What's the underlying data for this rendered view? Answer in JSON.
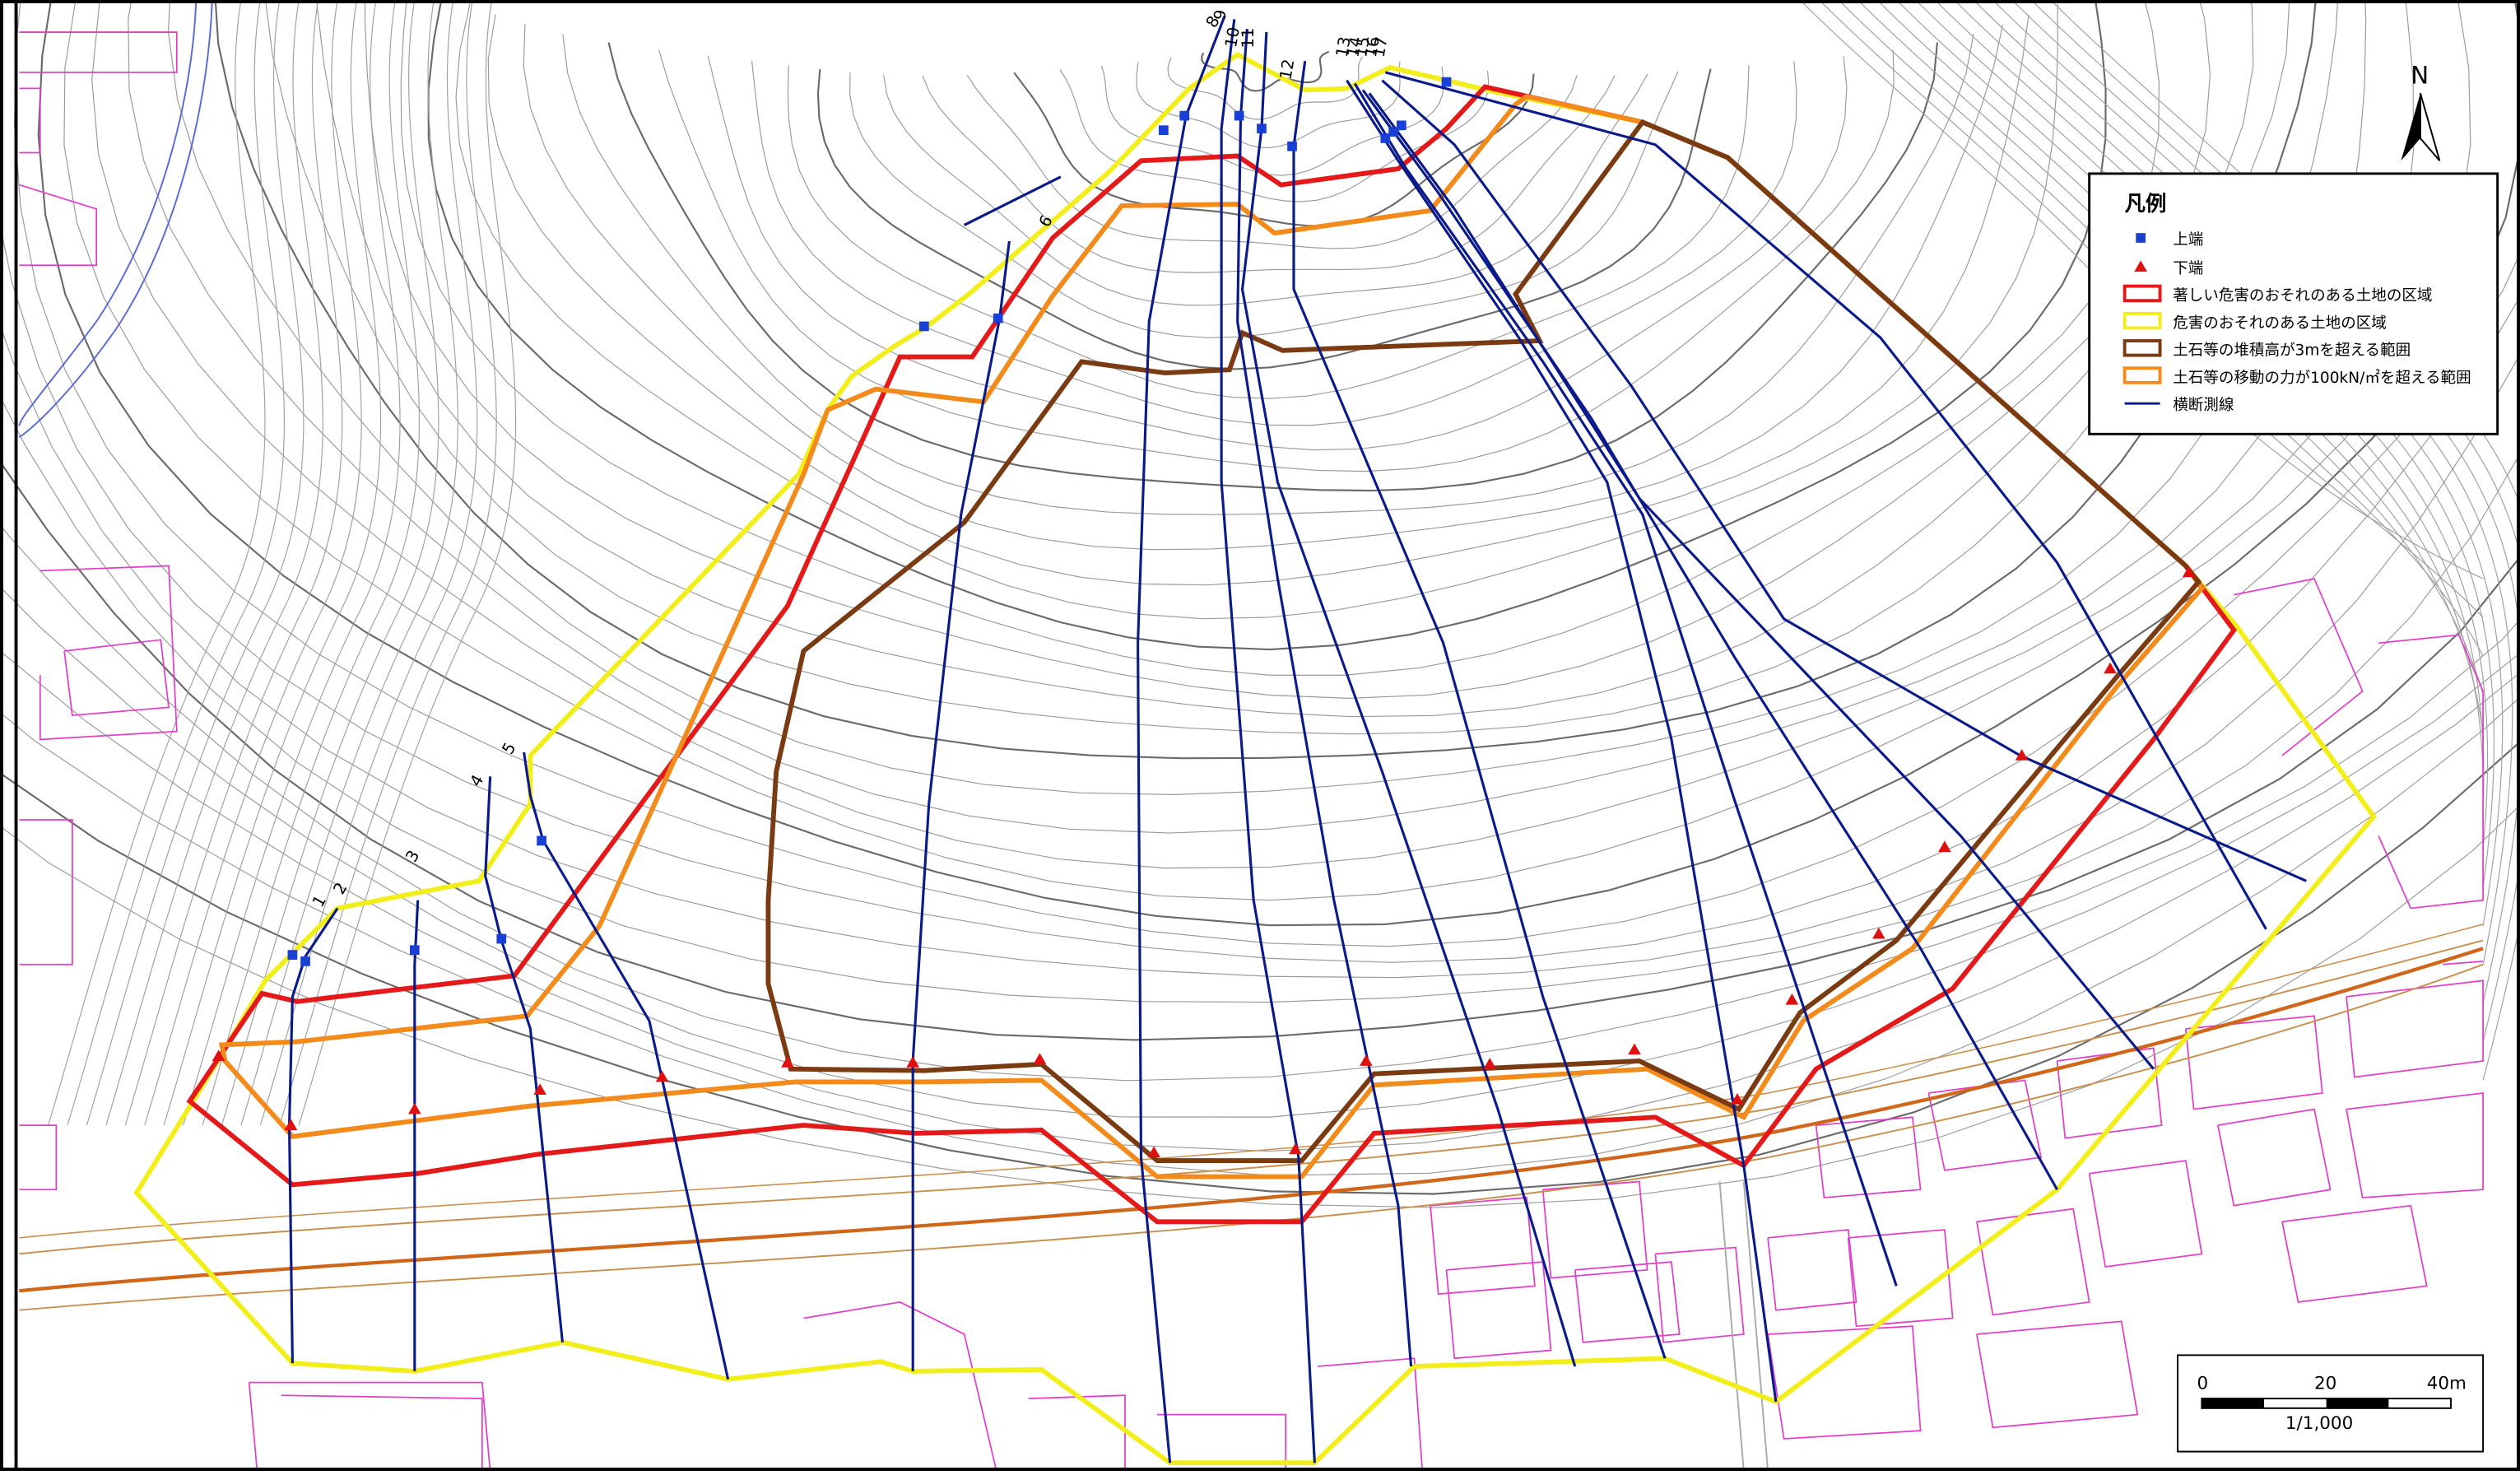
{
  "legend": {
    "title": "凡例",
    "items": [
      {
        "key": "upper",
        "label": "上端",
        "color": "#1a3fd6",
        "symbol": "square"
      },
      {
        "key": "lower",
        "label": "下端",
        "color": "#e01010",
        "symbol": "triangle"
      },
      {
        "key": "red_zone",
        "label": "著しい危害のおそれのある土地の区域",
        "color": "#e41a1a",
        "symbol": "box"
      },
      {
        "key": "yellow_zone",
        "label": "危害のおそれのある土地の区域",
        "color": "#f2ee1c",
        "symbol": "box"
      },
      {
        "key": "deposit",
        "label": "土石等の堆積高が3mを超える範囲",
        "color": "#7a3a12",
        "symbol": "box"
      },
      {
        "key": "force",
        "label": "土石等の移動の力が100kN/㎡を超える範囲",
        "color": "#f28a1c",
        "symbol": "box"
      },
      {
        "key": "cross_section",
        "label": "横断測線",
        "color": "#0a1a8a",
        "symbol": "line"
      }
    ]
  },
  "north": {
    "label": "N"
  },
  "scale": {
    "ticks": [
      "0",
      "20",
      "40m"
    ],
    "ratio": "1/1,000"
  },
  "cross_section_labels": [
    "1",
    "2",
    "3",
    "4",
    "5",
    "6",
    "8",
    "9",
    "10",
    "11",
    "12",
    "13",
    "14",
    "15",
    "16",
    "17"
  ],
  "colors": {
    "contour": "#8c8c8c",
    "contour_index": "#6a6a6a",
    "building": "#e040c8",
    "road": "#c88a50",
    "cross_line": "#0a1a8a"
  }
}
